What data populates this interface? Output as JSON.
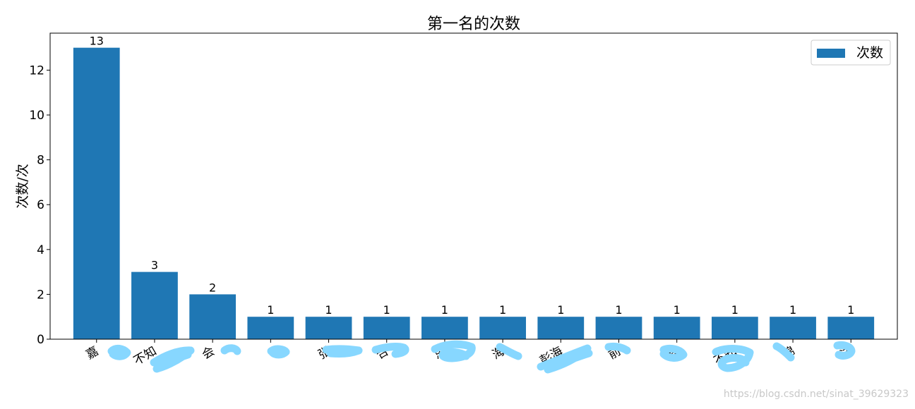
{
  "chart_data": {
    "type": "bar",
    "title": "第一名的次数",
    "xlabel": "",
    "ylabel": "次数/次",
    "categories": [
      "嘉",
      "不知",
      "会",
      "",
      "张",
      "合",
      "思",
      "海",
      "彭海",
      "前",
      "春",
      "不知",
      "锦",
      "洁"
    ],
    "series": [
      {
        "name": "次数",
        "values": [
          13,
          3,
          2,
          1,
          1,
          1,
          1,
          1,
          1,
          1,
          1,
          1,
          1,
          1
        ]
      }
    ],
    "ylim": [
      0,
      13.65
    ],
    "yticks": [
      0,
      2,
      4,
      6,
      8,
      10,
      12
    ],
    "x_tick_rotation": 30,
    "grid": false,
    "legend_position": "top-right",
    "data_labels": true,
    "colors": {
      "bar": "#1f77b4",
      "redaction": "#87d7ff"
    }
  },
  "watermark": "https://blog.csdn.net/sinat_39629323"
}
